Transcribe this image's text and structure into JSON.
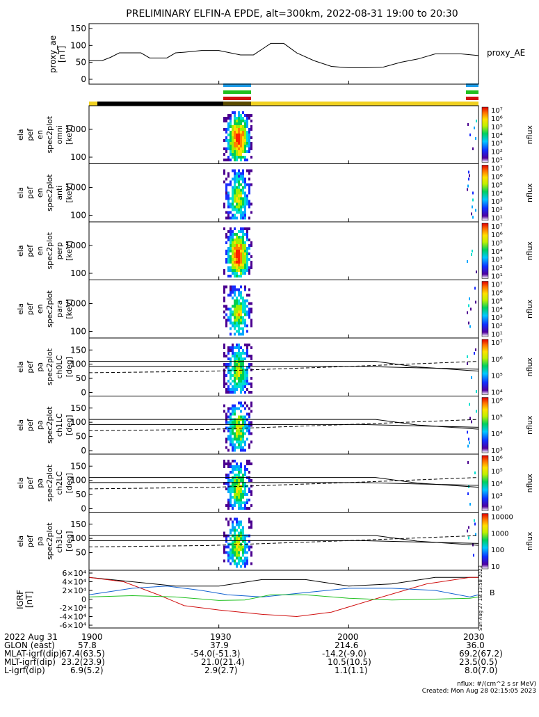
{
  "title": "PRELIMINARY ELFIN-A EPDE, alt=300km, 2022-08-31 19:00 to 20:30",
  "colors": {
    "black": "#000000",
    "red": "#d01010",
    "green": "#20c020",
    "blue": "#1060d0",
    "yellow": "#f0d020",
    "bar_blue": "#1a9be8"
  },
  "chart_data": [
    {
      "type": "line",
      "panel": "proxy_ae",
      "ylabel": "proxy_ae [nT]",
      "legend": "proxy_AE",
      "yticks": [
        "150",
        "100",
        "50",
        "0"
      ],
      "ylim": [
        0,
        150
      ],
      "xlim": [
        0,
        90
      ],
      "x": [
        0,
        3,
        5,
        7,
        12,
        14,
        18,
        20,
        22,
        26,
        30,
        35,
        38,
        42,
        45,
        48,
        52,
        56,
        60,
        64,
        68,
        72,
        76,
        80,
        84,
        86,
        90
      ],
      "y": [
        55,
        55,
        65,
        78,
        78,
        63,
        63,
        78,
        80,
        85,
        85,
        72,
        72,
        106,
        106,
        78,
        55,
        38,
        34,
        34,
        36,
        50,
        60,
        75,
        75,
        75,
        70
      ]
    },
    {
      "type": "heatmap",
      "panels": [
        {
          "label": [
            "ela",
            "pef",
            "en",
            "spec2plot",
            "omni",
            "[keV]"
          ],
          "yticks": [
            "1000",
            "100"
          ],
          "cbar_ticks": [
            "10^7",
            "10^6",
            "10^5",
            "10^4",
            "10^3",
            "10^2",
            "10^1"
          ],
          "cbar_label": "nflux"
        },
        {
          "label": [
            "ela",
            "pef",
            "en",
            "spec2plot",
            "anti",
            "[keV]"
          ],
          "yticks": [
            "1000",
            "100"
          ],
          "cbar_ticks": [
            "10^7",
            "10^6",
            "10^5",
            "10^4",
            "10^3",
            "10^2",
            "10^1"
          ],
          "cbar_label": "nflux"
        },
        {
          "label": [
            "ela",
            "pef",
            "en",
            "spec2plot",
            "perp",
            "[keV]"
          ],
          "yticks": [
            "1000",
            "100"
          ],
          "cbar_ticks": [
            "10^7",
            "10^6",
            "10^5",
            "10^4",
            "10^3",
            "10^2",
            "10^1"
          ],
          "cbar_label": "nflux"
        },
        {
          "label": [
            "ela",
            "pef",
            "en",
            "spec2plot",
            "para",
            "[keV]"
          ],
          "yticks": [
            "1000",
            "100"
          ],
          "cbar_ticks": [
            "10^7",
            "10^6",
            "10^5",
            "10^4",
            "10^3",
            "10^2",
            "10^1"
          ],
          "cbar_label": "nflux"
        },
        {
          "label": [
            "ela",
            "pef",
            "pa",
            "spec2plot",
            "ch0LC",
            "[deg]"
          ],
          "yticks": [
            "150",
            "100",
            "50",
            "0"
          ],
          "cbar_ticks": [
            "10^7",
            "10^6",
            "10^5",
            "10^4"
          ],
          "cbar_label": "nflux"
        },
        {
          "label": [
            "ela",
            "pef",
            "pa",
            "spec2plot",
            "ch1LC",
            "[deg]"
          ],
          "yticks": [
            "150",
            "100",
            "50",
            "0"
          ],
          "cbar_ticks": [
            "10^6",
            "10^5",
            "10^4",
            "10^3"
          ],
          "cbar_label": "nflux"
        },
        {
          "label": [
            "ela",
            "pef",
            "pa",
            "spec2plot",
            "ch2LC",
            "[deg]"
          ],
          "yticks": [
            "150",
            "100",
            "50",
            "0"
          ],
          "cbar_ticks": [
            "10^6",
            "10^5",
            "10^4",
            "10^3",
            "10^2"
          ],
          "cbar_label": "nflux"
        },
        {
          "label": [
            "ela",
            "pef",
            "pa",
            "spec2plot",
            "ch3LC",
            "[deg]"
          ],
          "yticks": [
            "150",
            "100",
            "50"
          ],
          "cbar_ticks": [
            "10000",
            "1000",
            "100",
            "10"
          ],
          "cbar_label": "nflux"
        }
      ]
    },
    {
      "type": "line",
      "panel": "igrf",
      "ylabel": "IGRF [nT]",
      "yticks": [
        "6×10^4",
        "4×10^4",
        "2×10^4",
        "0",
        "-2×10^4",
        "-4×10^4",
        "-6×10^4"
      ],
      "ylim": [
        -60000,
        60000
      ],
      "xlim": [
        0,
        90
      ],
      "series": [
        {
          "color": "black",
          "x": [
            0,
            10,
            20,
            30,
            40,
            50,
            60,
            70,
            80,
            90
          ],
          "y": [
            50000,
            40000,
            30000,
            30000,
            45000,
            45000,
            30000,
            35000,
            50000,
            50000
          ]
        },
        {
          "color": "red",
          "x": [
            0,
            8,
            16,
            22,
            30,
            40,
            48,
            56,
            66,
            78,
            88,
            90
          ],
          "y": [
            50000,
            40000,
            10000,
            -15000,
            -25000,
            -35000,
            -40000,
            -30000,
            0,
            35000,
            50000,
            50000
          ]
        },
        {
          "color": "blue",
          "x": [
            0,
            10,
            18,
            26,
            32,
            40,
            50,
            60,
            70,
            80,
            88,
            90
          ],
          "y": [
            10000,
            25000,
            30000,
            20000,
            10000,
            5000,
            15000,
            25000,
            25000,
            20000,
            5000,
            10000
          ]
        },
        {
          "color": "green",
          "x": [
            0,
            10,
            20,
            30,
            36,
            42,
            50,
            60,
            70,
            80,
            88,
            90
          ],
          "y": [
            5000,
            8000,
            5000,
            -3000,
            -2000,
            10000,
            10000,
            2000,
            -2000,
            0,
            2000,
            5000
          ]
        }
      ]
    }
  ],
  "side_text": {
    "proxy_label": "proxy_AE",
    "vertical_stamp": "Sun Aug 27 18:13:58 2023",
    "legend_marker": "B"
  },
  "footer": {
    "rows": [
      {
        "label": "2022 Aug 31",
        "values": [
          "1900",
          "1930",
          "2000",
          "2030"
        ]
      },
      {
        "label": "GLON (east)",
        "values": [
          "57.8",
          "37.9",
          "214.6",
          "36.0"
        ]
      },
      {
        "label": "MLAT-igrf(dip)",
        "values": [
          "67.4(63.5)",
          "-54.0(-51.3)",
          "-14.2(-9.0)",
          "69.2(67.2)"
        ]
      },
      {
        "label": "MLT-igrf(dip)",
        "values": [
          "23.2(23.9)",
          "21.0(21.4)",
          "10.5(10.5)",
          "23.5(0.5)"
        ]
      },
      {
        "label": "L-igrf(dip)",
        "values": [
          "6.9(5.2)",
          "2.9(2.7)",
          "1.1(1.1)",
          "8.0(7.0)"
        ]
      }
    ],
    "units_note": "nflux: #/(cm^2 s sr MeV)",
    "created": "Created: Mon Aug 28 02:15:05 2023"
  }
}
